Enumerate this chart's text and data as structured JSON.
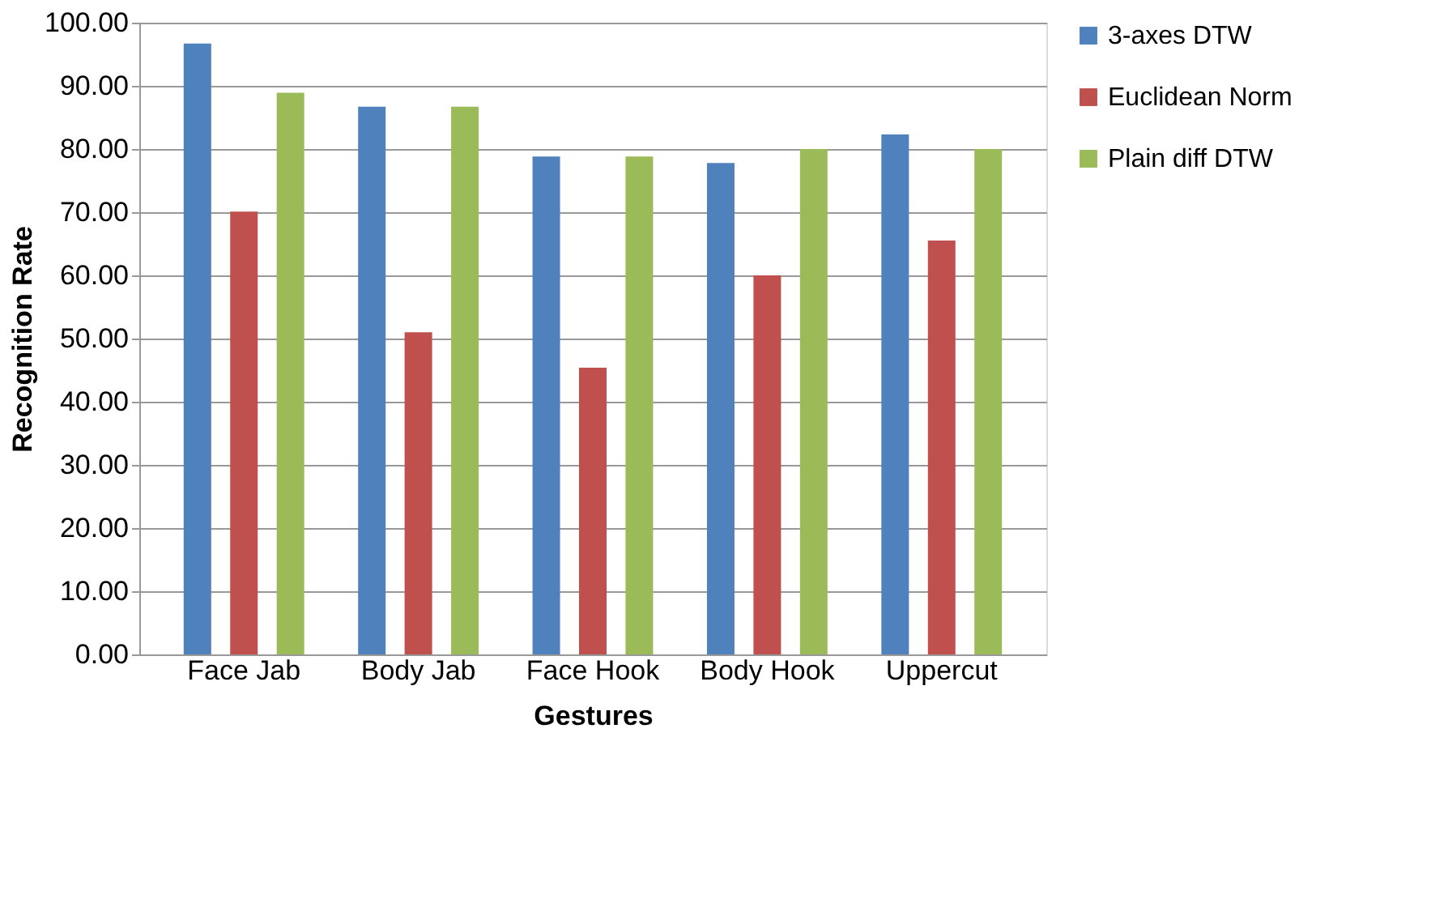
{
  "chart_data": {
    "type": "bar",
    "xlabel": "Gestures",
    "ylabel": "Recognition Rate",
    "categories": [
      "Face Jab",
      "Body Jab",
      "Face Hook",
      "Body Hook",
      "Uppercut"
    ],
    "series": [
      {
        "name": "3-axes DTW",
        "color": "#4f81bd",
        "values": [
          96.7,
          86.7,
          78.8,
          77.8,
          82.3
        ]
      },
      {
        "name": "Euclidean Norm",
        "color": "#c0504d",
        "values": [
          70.1,
          51.0,
          45.4,
          60.0,
          65.5
        ]
      },
      {
        "name": "Plain diff DTW",
        "color": "#9bbb59",
        "values": [
          88.9,
          86.7,
          78.8,
          80.0,
          80.0
        ]
      }
    ],
    "ylim": [
      0,
      100
    ],
    "yticks": [
      {
        "value": 0,
        "label": "0.00"
      },
      {
        "value": 10,
        "label": "10.00"
      },
      {
        "value": 20,
        "label": "20.00"
      },
      {
        "value": 30,
        "label": "30.00"
      },
      {
        "value": 40,
        "label": "40.00"
      },
      {
        "value": 50,
        "label": "50.00"
      },
      {
        "value": 60,
        "label": "60.00"
      },
      {
        "value": 70,
        "label": "70.00"
      },
      {
        "value": 80,
        "label": "80.00"
      },
      {
        "value": 90,
        "label": "90.00"
      },
      {
        "value": 100,
        "label": "100.00"
      }
    ],
    "grid": "y",
    "legend": "right"
  }
}
